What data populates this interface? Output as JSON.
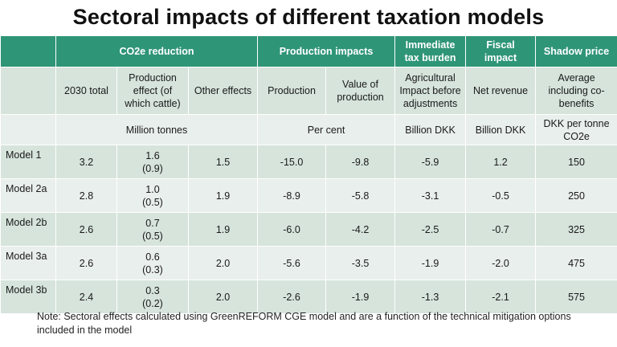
{
  "title": "Sectoral impacts of different taxation models",
  "groups": {
    "co2e": "CO2e reduction",
    "production": "Production impacts",
    "immediate": "Immediate tax burden",
    "fiscal": "Fiscal impact",
    "shadow": "Shadow price"
  },
  "columns": {
    "total_2030": "2030 total",
    "prod_effect": "Production effect (of which cattle)",
    "other": "Other effects",
    "production": "Production",
    "value_prod": "Value of production",
    "agri": "Agricultural Impact before adjustments",
    "net_rev": "Net revenue",
    "avg": "Average including co-benefits"
  },
  "units": {
    "million_tonnes": "Million tonnes",
    "per_cent": "Per cent",
    "billion_dkk_1": "Billion DKK",
    "billion_dkk_2": "Billion DKK",
    "dkk_per_tonne": "DKK per tonne CO2e"
  },
  "rows": [
    {
      "model": "Model 1",
      "total": "3.2",
      "prod": "1.6",
      "cattle": "(0.9)",
      "other": "1.5",
      "production": "-15.0",
      "value": "-9.8",
      "agri": "-5.9",
      "net": "1.2",
      "avg": "150"
    },
    {
      "model": "Model 2a",
      "total": "2.8",
      "prod": "1.0",
      "cattle": "(0.5)",
      "other": "1.9",
      "production": "-8.9",
      "value": "-5.8",
      "agri": "-3.1",
      "net": "-0.5",
      "avg": "250"
    },
    {
      "model": "Model 2b",
      "total": "2.6",
      "prod": "0.7",
      "cattle": "(0.5)",
      "other": "1.9",
      "production": "-6.0",
      "value": "-4.2",
      "agri": "-2.5",
      "net": "-0.7",
      "avg": "325"
    },
    {
      "model": "Model 3a",
      "total": "2.6",
      "prod": "0.6",
      "cattle": "(0.3)",
      "other": "2.0",
      "production": "-5.6",
      "value": "-3.5",
      "agri": "-1.9",
      "net": "-2.0",
      "avg": "475"
    },
    {
      "model": "Model 3b",
      "total": "2.4",
      "prod": "0.3",
      "cattle": "(0.2)",
      "other": "2.0",
      "production": "-2.6",
      "value": "-1.9",
      "agri": "-1.3",
      "net": "-2.1",
      "avg": "575"
    }
  ],
  "note": "Note: Sectoral effects calculated using GreenREFORM CGE model and are a function of the technical mitigation options included in the model"
}
